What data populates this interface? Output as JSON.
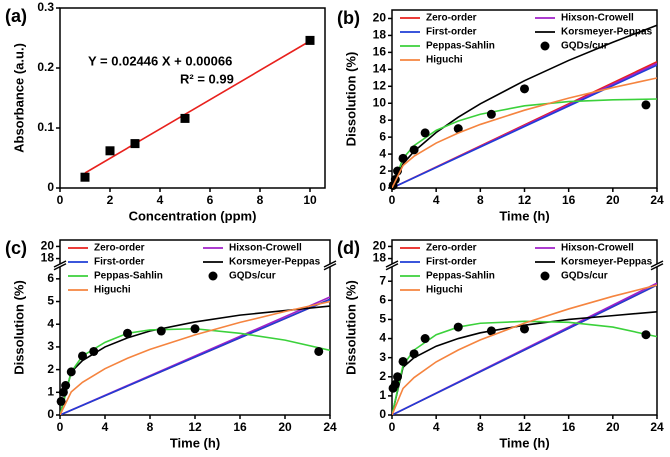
{
  "chart_data": [
    {
      "type": "scatter",
      "panel_label": "(a)",
      "xlabel": "Concentration (ppm)",
      "ylabel": "Absorbance (a.u.)",
      "annotations": [
        "Y = 0.02446 X + 0.00066",
        "R² = 0.99"
      ],
      "xlim": [
        0,
        10.6
      ],
      "xticks": [
        0,
        2,
        4,
        6,
        8,
        10
      ],
      "ylim": [
        0,
        0.3
      ],
      "yticks": [
        0,
        0.1,
        0.2,
        0.3
      ],
      "series": [
        {
          "color": "#e8211d",
          "style": "line",
          "x": [
            1,
            10
          ],
          "values": [
            0.025,
            0.245
          ]
        },
        {
          "color": "#000000",
          "style": "square",
          "x": [
            1,
            2,
            3,
            5,
            10
          ],
          "values": [
            0.018,
            0.062,
            0.074,
            0.116,
            0.246
          ]
        }
      ]
    },
    {
      "type": "line",
      "panel_label": "(b)",
      "xlabel": "Time (h)",
      "ylabel": "Dissolution (%)",
      "xlim": [
        0,
        24
      ],
      "xticks": [
        0,
        4,
        8,
        12,
        16,
        20,
        24
      ],
      "ylim": [
        0,
        21
      ],
      "yticks": [
        0,
        2,
        4,
        6,
        8,
        10,
        12,
        14,
        16,
        18,
        20
      ],
      "series": [
        {
          "name": "Zero-order",
          "color": "#e8211d",
          "style": "line",
          "x": [
            0,
            24
          ],
          "values": [
            0,
            14.9
          ]
        },
        {
          "name": "Hixson-Crowell",
          "color": "#a020c8",
          "style": "line",
          "x": [
            0,
            24
          ],
          "values": [
            0,
            14.7
          ]
        },
        {
          "name": "First-order",
          "color": "#1f3ed6",
          "style": "line",
          "x": [
            0,
            24
          ],
          "values": [
            0,
            14.5
          ]
        },
        {
          "name": "Korsmeyer-Peppas",
          "color": "#000000",
          "style": "line",
          "x": [
            0,
            1,
            2,
            4,
            6,
            8,
            12,
            16,
            20,
            24
          ],
          "values": [
            0,
            2.85,
            4.32,
            6.55,
            8.35,
            9.93,
            12.66,
            15.05,
            17.2,
            19.2
          ]
        },
        {
          "name": "Peppas-Sahlin",
          "color": "#3bd13b",
          "style": "line",
          "x": [
            0,
            1,
            2,
            4,
            6,
            8,
            12,
            16,
            20,
            24
          ],
          "values": [
            0,
            3.5,
            5.0,
            6.8,
            7.9,
            8.7,
            9.7,
            10.2,
            10.4,
            10.5
          ]
        },
        {
          "name": "GQDs/cur",
          "color": "#000000",
          "style": "circle",
          "x": [
            0.1,
            0.3,
            0.5,
            1,
            2,
            3,
            6,
            9,
            12,
            23
          ],
          "values": [
            0.3,
            1.0,
            2.0,
            3.5,
            4.5,
            6.5,
            7.0,
            8.7,
            11.7,
            9.8
          ]
        },
        {
          "name": "Higuchi",
          "color": "#f5843f",
          "style": "line",
          "x": [
            0,
            1,
            2,
            4,
            6,
            8,
            12,
            16,
            20,
            24
          ],
          "values": [
            0,
            2.65,
            3.75,
            5.3,
            6.49,
            7.5,
            9.18,
            10.6,
            11.85,
            12.98
          ]
        }
      ]
    },
    {
      "type": "line",
      "panel_label": "(c)",
      "xlabel": "Time (h)",
      "ylabel": "Dissolution (%)",
      "xlim": [
        0,
        24
      ],
      "xticks": [
        0,
        4,
        8,
        12,
        16,
        20,
        24
      ],
      "ylim": [
        0,
        6.4
      ],
      "yticks": [
        0,
        1,
        2,
        3,
        4,
        5,
        6
      ],
      "y_break": {
        "ylim": [
          17.6,
          20.4
        ],
        "yticks": [
          18,
          20
        ]
      },
      "series": [
        {
          "name": "Zero-order",
          "color": "#e8211d",
          "style": "line",
          "x": [
            0,
            24
          ],
          "values": [
            0,
            5.1
          ]
        },
        {
          "name": "Hixson-Crowell",
          "color": "#a020c8",
          "style": "line",
          "x": [
            0,
            24
          ],
          "values": [
            0,
            5.2
          ]
        },
        {
          "name": "First-order",
          "color": "#1f3ed6",
          "style": "line",
          "x": [
            0,
            24
          ],
          "values": [
            0,
            5.1
          ]
        },
        {
          "name": "Korsmeyer-Peppas",
          "color": "#000000",
          "style": "line",
          "x": [
            0,
            1,
            2,
            4,
            6,
            8,
            12,
            16,
            20,
            24
          ],
          "values": [
            0,
            1.9,
            2.4,
            3.0,
            3.4,
            3.7,
            4.1,
            4.4,
            4.6,
            4.8
          ]
        },
        {
          "name": "Peppas-Sahlin",
          "color": "#3bd13b",
          "style": "line",
          "x": [
            0,
            1,
            2,
            4,
            6,
            8,
            12,
            16,
            20,
            24
          ],
          "values": [
            0,
            1.9,
            2.6,
            3.2,
            3.6,
            3.75,
            3.8,
            3.6,
            3.3,
            2.85
          ]
        },
        {
          "name": "GQDs/cur",
          "color": "#000000",
          "style": "circle",
          "x": [
            0.1,
            0.3,
            0.5,
            1,
            2,
            3,
            6,
            9,
            12,
            23
          ],
          "values": [
            0.6,
            1.0,
            1.3,
            1.9,
            2.6,
            2.8,
            3.6,
            3.7,
            3.8,
            2.8
          ]
        },
        {
          "name": "Higuchi",
          "color": "#f5843f",
          "style": "line",
          "x": [
            0,
            1,
            2,
            4,
            6,
            8,
            12,
            16,
            20,
            24
          ],
          "values": [
            0,
            1.02,
            1.44,
            2.04,
            2.5,
            2.89,
            3.53,
            4.08,
            4.56,
            5.0
          ]
        }
      ]
    },
    {
      "type": "line",
      "panel_label": "(d)",
      "xlabel": "Time (h)",
      "ylabel": "Dissolution (%)",
      "xlim": [
        0,
        24
      ],
      "xticks": [
        0,
        4,
        8,
        12,
        16,
        20,
        24
      ],
      "ylim": [
        0,
        7.6
      ],
      "yticks": [
        0,
        1,
        2,
        3,
        4,
        5,
        6,
        7
      ],
      "y_break": {
        "ylim": [
          17.6,
          20.4
        ],
        "yticks": [
          18,
          20
        ]
      },
      "series": [
        {
          "name": "Zero-order",
          "color": "#e8211d",
          "style": "line",
          "x": [
            0,
            24
          ],
          "values": [
            0,
            6.8
          ]
        },
        {
          "name": "Hixson-Crowell",
          "color": "#a020c8",
          "style": "line",
          "x": [
            0,
            24
          ],
          "values": [
            0,
            6.9
          ]
        },
        {
          "name": "First-order",
          "color": "#1f3ed6",
          "style": "line",
          "x": [
            0,
            24
          ],
          "values": [
            0,
            6.8
          ]
        },
        {
          "name": "Korsmeyer-Peppas",
          "color": "#000000",
          "style": "line",
          "x": [
            0,
            1,
            2,
            4,
            6,
            8,
            12,
            16,
            20,
            24
          ],
          "values": [
            0,
            2.5,
            3.0,
            3.6,
            4.0,
            4.3,
            4.7,
            5.0,
            5.2,
            5.4
          ]
        },
        {
          "name": "Peppas-Sahlin",
          "color": "#3bd13b",
          "style": "line",
          "x": [
            0,
            1,
            2,
            4,
            6,
            8,
            12,
            16,
            20,
            24
          ],
          "values": [
            0,
            2.6,
            3.4,
            4.2,
            4.6,
            4.8,
            4.9,
            4.85,
            4.6,
            4.1
          ]
        },
        {
          "name": "GQDs/cur",
          "color": "#000000",
          "style": "circle",
          "x": [
            0.1,
            0.3,
            0.5,
            1,
            2,
            3,
            6,
            9,
            12,
            23
          ],
          "values": [
            1.4,
            1.6,
            2.0,
            2.8,
            3.2,
            4.0,
            4.6,
            4.4,
            4.5,
            4.2
          ]
        },
        {
          "name": "Higuchi",
          "color": "#f5843f",
          "style": "line",
          "x": [
            0,
            1,
            2,
            4,
            6,
            8,
            12,
            16,
            20,
            24
          ],
          "values": [
            0,
            1.39,
            1.96,
            2.78,
            3.4,
            3.93,
            4.81,
            5.55,
            6.21,
            6.8
          ]
        }
      ]
    }
  ]
}
